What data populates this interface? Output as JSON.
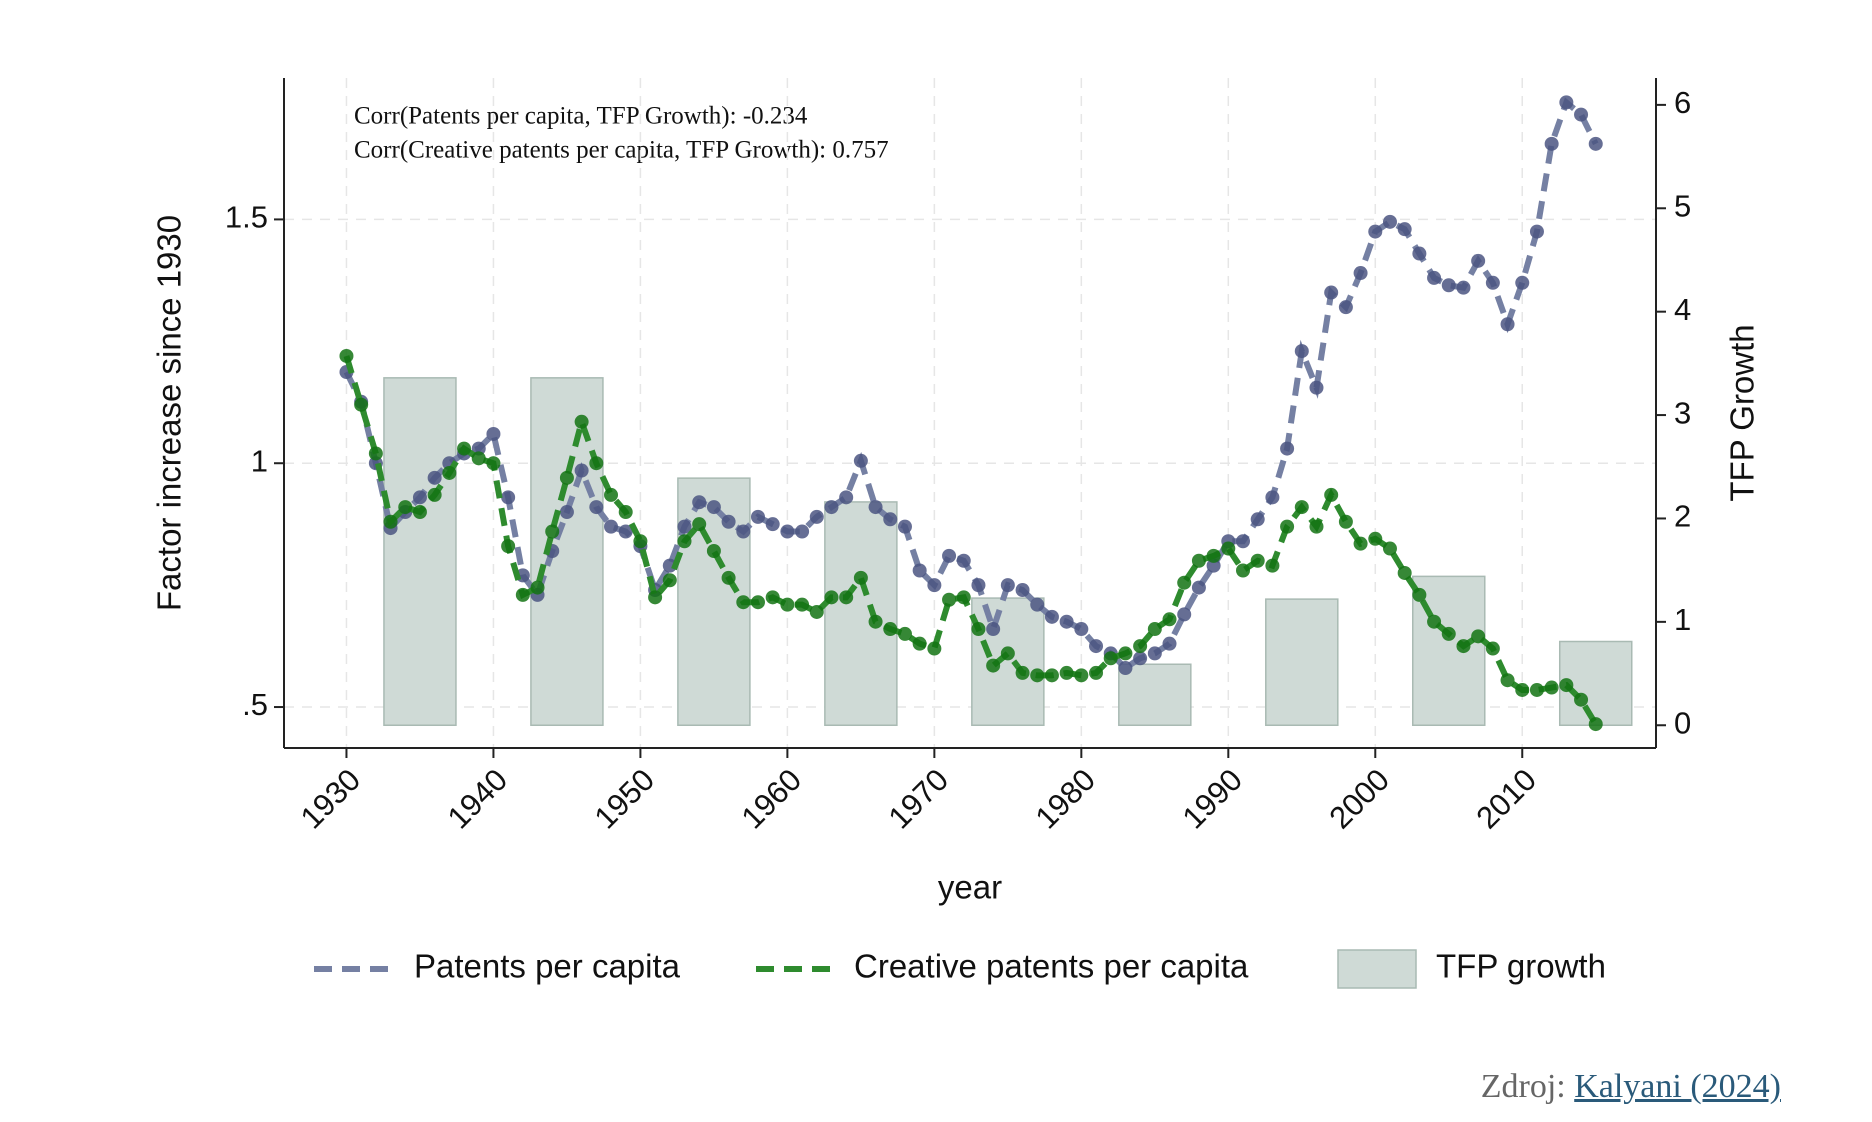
{
  "chart_data": {
    "type": "line",
    "annotations": [
      "Corr(Patents per capita, TFP Growth): -0.234",
      "Corr(Creative patents per capita, TFP Growth): 0.757"
    ],
    "x_label": "year",
    "y_label": "Factor increase since 1930",
    "y2_label": "TFP Growth",
    "x": [
      1930,
      1931,
      1932,
      1933,
      1934,
      1935,
      1936,
      1937,
      1938,
      1939,
      1940,
      1941,
      1942,
      1943,
      1944,
      1945,
      1946,
      1947,
      1948,
      1949,
      1950,
      1951,
      1952,
      1953,
      1954,
      1955,
      1956,
      1957,
      1958,
      1959,
      1960,
      1961,
      1962,
      1963,
      1964,
      1965,
      1966,
      1967,
      1968,
      1969,
      1970,
      1971,
      1972,
      1973,
      1974,
      1975,
      1976,
      1977,
      1978,
      1979,
      1980,
      1981,
      1982,
      1983,
      1984,
      1985,
      1986,
      1987,
      1988,
      1989,
      1990,
      1991,
      1992,
      1993,
      1994,
      1995,
      1996,
      1997,
      1998,
      1999,
      2000,
      2001,
      2002,
      2003,
      2004,
      2005,
      2006,
      2007,
      2008,
      2009,
      2010,
      2011,
      2012,
      2013,
      2014,
      2015
    ],
    "series": [
      {
        "name": "Patents per capita",
        "color": "#7580a3",
        "marker_color": "#4b5581",
        "values": [
          1.187,
          1.126,
          1.0,
          0.867,
          0.9,
          0.93,
          0.97,
          1.0,
          1.02,
          1.03,
          1.06,
          0.93,
          0.77,
          0.73,
          0.82,
          0.9,
          0.985,
          0.91,
          0.87,
          0.86,
          0.83,
          0.74,
          0.79,
          0.87,
          0.92,
          0.91,
          0.88,
          0.86,
          0.89,
          0.875,
          0.86,
          0.86,
          0.89,
          0.91,
          0.93,
          1.005,
          0.91,
          0.885,
          0.87,
          0.78,
          0.75,
          0.81,
          0.8,
          0.75,
          0.66,
          0.75,
          0.74,
          0.71,
          0.685,
          0.675,
          0.66,
          0.625,
          0.61,
          0.58,
          0.6,
          0.61,
          0.63,
          0.69,
          0.745,
          0.79,
          0.84,
          0.84,
          0.885,
          0.93,
          1.03,
          1.23,
          1.155,
          1.35,
          1.32,
          1.39,
          1.475,
          1.495,
          1.48,
          1.43,
          1.38,
          1.365,
          1.36,
          1.415,
          1.37,
          1.285,
          1.37,
          1.475,
          1.655,
          1.74,
          1.715,
          1.655
        ]
      },
      {
        "name": "Creative patents per capita",
        "color": "#2e8b2e",
        "marker_color": "#137313",
        "values": [
          1.22,
          1.12,
          1.02,
          0.88,
          0.91,
          0.9,
          0.935,
          0.98,
          1.03,
          1.01,
          1.0,
          0.83,
          0.73,
          0.745,
          0.86,
          0.97,
          1.085,
          1.0,
          0.935,
          0.9,
          0.84,
          0.725,
          0.76,
          0.84,
          0.875,
          0.82,
          0.765,
          0.715,
          0.715,
          0.725,
          0.71,
          0.71,
          0.695,
          0.725,
          0.725,
          0.765,
          0.675,
          0.66,
          0.65,
          0.63,
          0.62,
          0.72,
          0.725,
          0.66,
          0.585,
          0.61,
          0.57,
          0.565,
          0.565,
          0.57,
          0.565,
          0.57,
          0.6,
          0.61,
          0.625,
          0.66,
          0.68,
          0.755,
          0.8,
          0.81,
          0.825,
          0.78,
          0.8,
          0.79,
          0.87,
          0.91,
          0.87,
          0.935,
          0.88,
          0.835,
          0.845,
          0.825,
          0.775,
          0.73,
          0.675,
          0.65,
          0.625,
          0.645,
          0.62,
          0.555,
          0.535,
          0.535,
          0.54,
          0.545,
          0.515,
          0.465
        ]
      }
    ],
    "bars": {
      "name": "TFP growth",
      "type": "bar",
      "axis": "y2",
      "color": "#cfdad6",
      "edge_color": "#a9bab3",
      "x": [
        1935,
        1945,
        1955,
        1965,
        1975,
        1985,
        1995,
        2005,
        2015
      ],
      "values": [
        3.36,
        3.36,
        2.39,
        2.16,
        1.23,
        0.59,
        1.22,
        1.44,
        0.81
      ]
    },
    "xlim": [
      1925.75,
      2019.1
    ],
    "xticks": [
      1930,
      1940,
      1950,
      1960,
      1970,
      1980,
      1990,
      2000,
      2010
    ],
    "ylim": [
      0.416,
      1.79
    ],
    "yticks": [
      {
        "value": 0.5,
        "label": ".5"
      },
      1,
      1.5
    ],
    "y2lim": [
      -0.22,
      6.26
    ],
    "y2ticks": [
      0,
      1,
      2,
      3,
      4,
      5,
      6
    ],
    "grid": true,
    "legend": "bottom"
  },
  "source": {
    "prefix": "Zdroj:",
    "link": "Kalyani (2024)"
  }
}
